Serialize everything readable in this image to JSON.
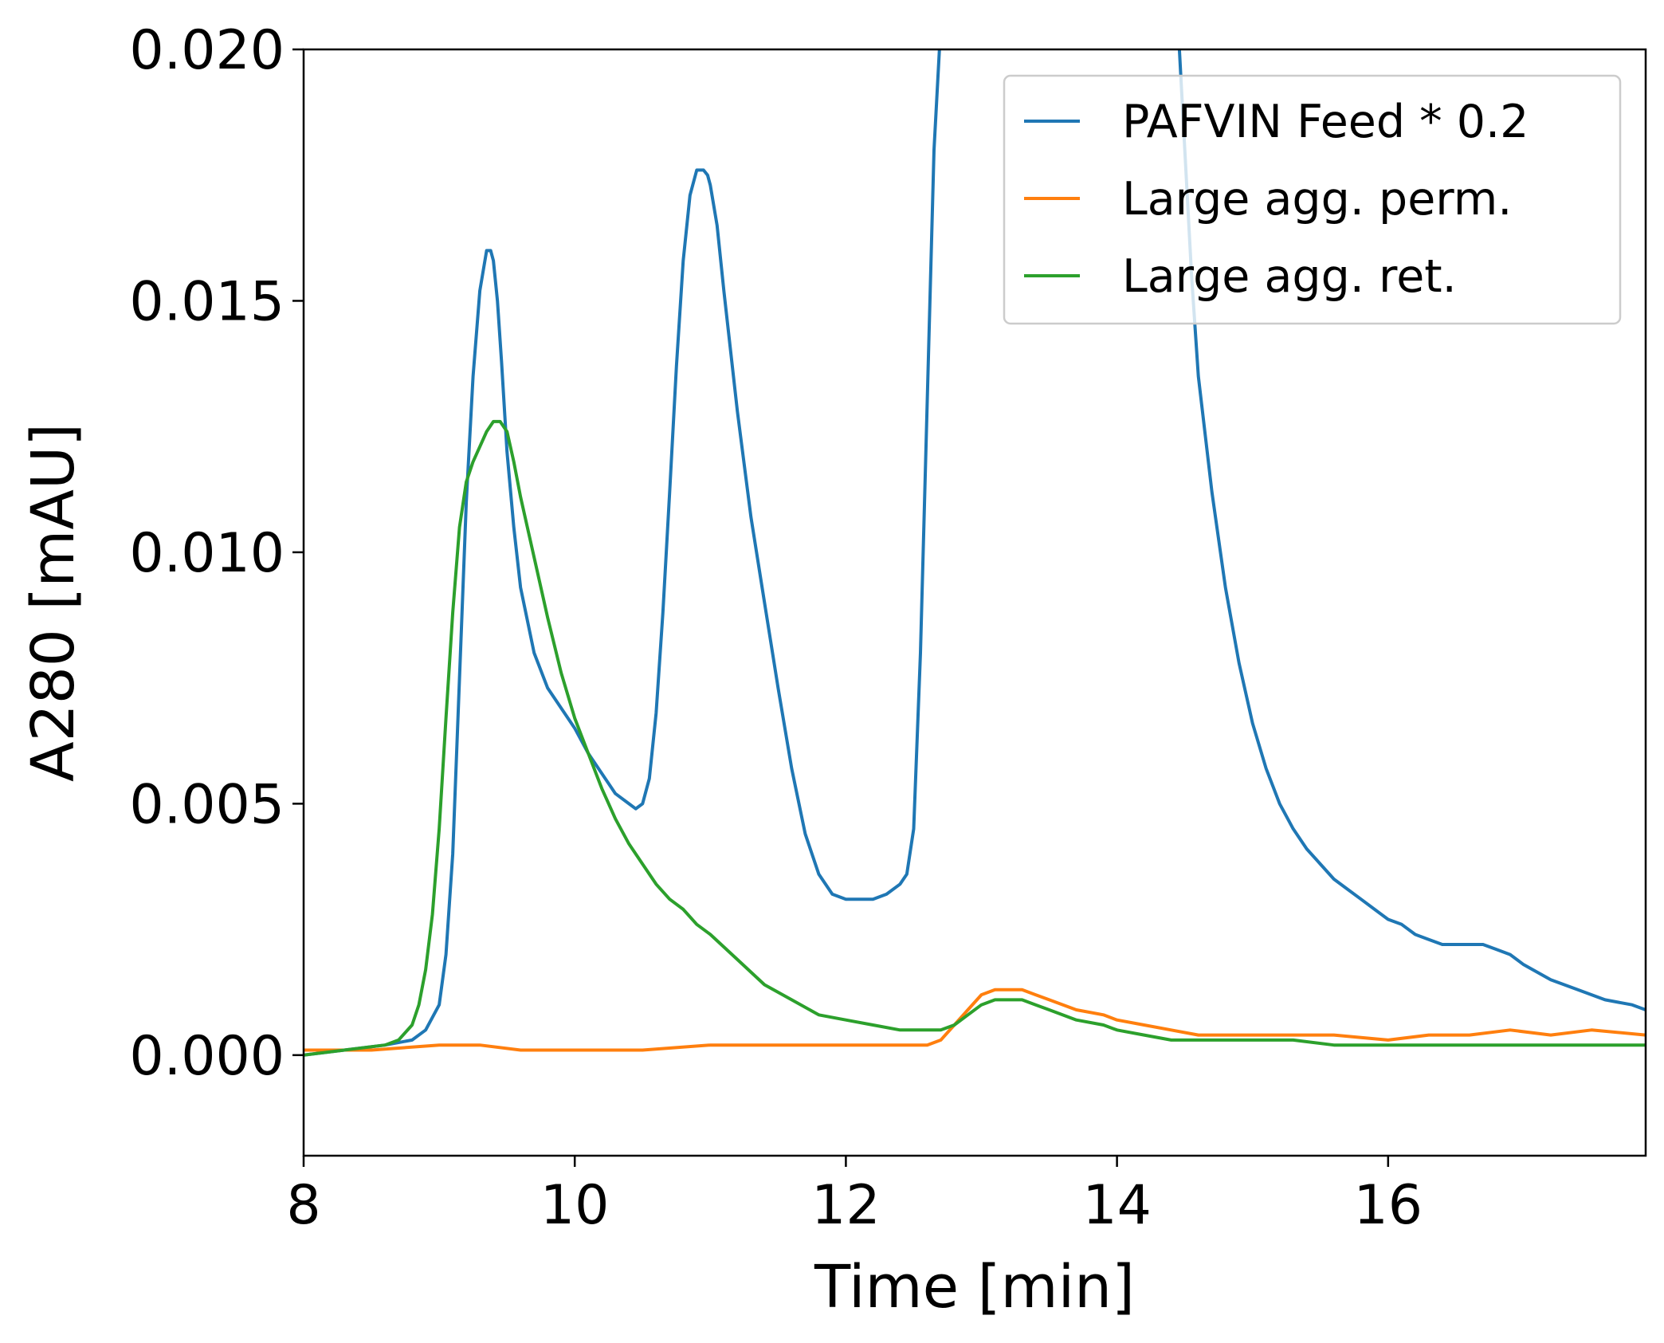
{
  "chart_data": {
    "type": "line",
    "title": "",
    "xlabel": "Time [min]",
    "ylabel": "A280 [mAU]",
    "xlim": [
      8,
      17.9
    ],
    "ylim": [
      -0.002,
      0.02
    ],
    "x_ticks": [
      8,
      10,
      12,
      14,
      16
    ],
    "x_tick_labels": [
      "8",
      "10",
      "12",
      "14",
      "16"
    ],
    "y_ticks": [
      0.0,
      0.005,
      0.01,
      0.015,
      0.02
    ],
    "y_tick_labels": [
      "0.000",
      "0.005",
      "0.010",
      "0.015",
      "0.020"
    ],
    "grid": false,
    "legend_position": "top-right",
    "series": [
      {
        "name": "PAFVIN Feed * 0.2",
        "color": "#1f77b4",
        "x": [
          8.0,
          8.3,
          8.6,
          8.8,
          8.9,
          9.0,
          9.05,
          9.1,
          9.15,
          9.2,
          9.25,
          9.3,
          9.35,
          9.38,
          9.4,
          9.43,
          9.46,
          9.5,
          9.55,
          9.6,
          9.7,
          9.8,
          9.9,
          10.0,
          10.1,
          10.2,
          10.3,
          10.4,
          10.45,
          10.5,
          10.55,
          10.6,
          10.65,
          10.7,
          10.75,
          10.8,
          10.85,
          10.9,
          10.95,
          10.98,
          11.0,
          11.05,
          11.1,
          11.2,
          11.3,
          11.4,
          11.5,
          11.6,
          11.7,
          11.8,
          11.9,
          12.0,
          12.1,
          12.2,
          12.3,
          12.4,
          12.45,
          12.5,
          12.55,
          12.6,
          12.65,
          12.7,
          14.45,
          14.5,
          14.55,
          14.6,
          14.7,
          14.8,
          14.9,
          15.0,
          15.1,
          15.2,
          15.3,
          15.4,
          15.5,
          15.6,
          15.7,
          15.8,
          15.9,
          16.0,
          16.1,
          16.2,
          16.3,
          16.4,
          16.5,
          16.6,
          16.7,
          16.8,
          16.9,
          17.0,
          17.2,
          17.4,
          17.6,
          17.8,
          17.9
        ],
        "y": [
          0.0,
          0.0001,
          0.0002,
          0.0003,
          0.0005,
          0.001,
          0.002,
          0.004,
          0.0075,
          0.011,
          0.0135,
          0.0152,
          0.016,
          0.016,
          0.0158,
          0.015,
          0.0138,
          0.012,
          0.0105,
          0.0093,
          0.008,
          0.0073,
          0.0069,
          0.0065,
          0.006,
          0.0056,
          0.0052,
          0.005,
          0.0049,
          0.005,
          0.0055,
          0.0068,
          0.0088,
          0.0112,
          0.0137,
          0.0158,
          0.0171,
          0.0176,
          0.0176,
          0.0175,
          0.0173,
          0.0165,
          0.0152,
          0.0128,
          0.0107,
          0.009,
          0.0073,
          0.0057,
          0.0044,
          0.0036,
          0.0032,
          0.0031,
          0.0031,
          0.0031,
          0.0032,
          0.0034,
          0.0036,
          0.0045,
          0.008,
          0.013,
          0.018,
          0.0205,
          0.0205,
          0.018,
          0.0155,
          0.0135,
          0.0112,
          0.0093,
          0.0078,
          0.0066,
          0.0057,
          0.005,
          0.0045,
          0.0041,
          0.0038,
          0.0035,
          0.0033,
          0.0031,
          0.0029,
          0.0027,
          0.0026,
          0.0024,
          0.0023,
          0.0022,
          0.0022,
          0.0022,
          0.0022,
          0.0021,
          0.002,
          0.0018,
          0.0015,
          0.0013,
          0.0011,
          0.001,
          0.0009
        ]
      },
      {
        "name": "Large agg. perm.",
        "color": "#ff7f0e",
        "x": [
          8.0,
          8.5,
          9.0,
          9.3,
          9.6,
          10.0,
          10.5,
          11.0,
          11.5,
          12.0,
          12.5,
          12.6,
          12.7,
          12.8,
          12.9,
          13.0,
          13.1,
          13.2,
          13.3,
          13.4,
          13.5,
          13.7,
          13.9,
          14.0,
          14.2,
          14.4,
          14.6,
          14.8,
          15.0,
          15.3,
          15.6,
          16.0,
          16.3,
          16.6,
          16.9,
          17.2,
          17.5,
          17.9
        ],
        "y": [
          0.0001,
          0.0001,
          0.0002,
          0.0002,
          0.0001,
          0.0001,
          0.0001,
          0.0002,
          0.0002,
          0.0002,
          0.0002,
          0.0002,
          0.0003,
          0.0006,
          0.0009,
          0.0012,
          0.0013,
          0.0013,
          0.0013,
          0.0012,
          0.0011,
          0.0009,
          0.0008,
          0.0007,
          0.0006,
          0.0005,
          0.0004,
          0.0004,
          0.0004,
          0.0004,
          0.0004,
          0.0003,
          0.0004,
          0.0004,
          0.0005,
          0.0004,
          0.0005,
          0.0004
        ]
      },
      {
        "name": "Large agg. ret.",
        "color": "#2ca02c",
        "x": [
          8.0,
          8.3,
          8.6,
          8.7,
          8.8,
          8.85,
          8.9,
          8.95,
          9.0,
          9.05,
          9.1,
          9.15,
          9.2,
          9.25,
          9.3,
          9.35,
          9.4,
          9.45,
          9.5,
          9.55,
          9.6,
          9.7,
          9.8,
          9.9,
          10.0,
          10.1,
          10.2,
          10.3,
          10.4,
          10.5,
          10.6,
          10.7,
          10.8,
          10.9,
          11.0,
          11.2,
          11.4,
          11.6,
          11.8,
          12.0,
          12.2,
          12.4,
          12.6,
          12.7,
          12.8,
          12.9,
          13.0,
          13.1,
          13.2,
          13.3,
          13.4,
          13.5,
          13.7,
          13.9,
          14.0,
          14.2,
          14.4,
          14.6,
          14.8,
          15.0,
          15.3,
          15.6,
          16.0,
          16.4,
          16.8,
          17.2,
          17.6,
          17.9
        ],
        "y": [
          0.0,
          0.0001,
          0.0002,
          0.0003,
          0.0006,
          0.001,
          0.0017,
          0.0028,
          0.0045,
          0.0067,
          0.0088,
          0.0105,
          0.0114,
          0.0118,
          0.0121,
          0.0124,
          0.0126,
          0.0126,
          0.0124,
          0.0118,
          0.0111,
          0.0099,
          0.0087,
          0.0076,
          0.0067,
          0.006,
          0.0053,
          0.0047,
          0.0042,
          0.0038,
          0.0034,
          0.0031,
          0.0029,
          0.0026,
          0.0024,
          0.0019,
          0.0014,
          0.0011,
          0.0008,
          0.0007,
          0.0006,
          0.0005,
          0.0005,
          0.0005,
          0.0006,
          0.0008,
          0.001,
          0.0011,
          0.0011,
          0.0011,
          0.001,
          0.0009,
          0.0007,
          0.0006,
          0.0005,
          0.0004,
          0.0003,
          0.0003,
          0.0003,
          0.0003,
          0.0003,
          0.0002,
          0.0002,
          0.0002,
          0.0002,
          0.0002,
          0.0002,
          0.0002
        ]
      }
    ]
  }
}
